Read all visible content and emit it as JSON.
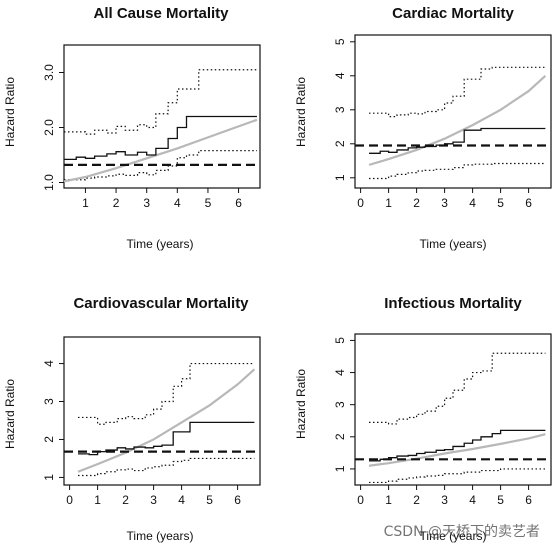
{
  "colors": {
    "axis": "#111111",
    "hr_line": "#111111",
    "ci_line": "#111111",
    "fitted_curve": "#b8b8b8",
    "reference_line": "#111111",
    "background": "#ffffff"
  },
  "watermark": "CSDN @天桥下的卖艺者",
  "chart_data": [
    {
      "type": "line",
      "title": "All Cause Mortality",
      "xlabel": "Time (years)",
      "ylabel": "Hazard Ratio",
      "xlim": [
        0.3,
        6.7
      ],
      "ylim": [
        0.9,
        3.5
      ],
      "xticks": [
        1,
        2,
        3,
        4,
        5,
        6
      ],
      "yticks": [
        1.0,
        2.0,
        3.0
      ],
      "ytick_labels": [
        "1.0",
        "2.0",
        "3.0"
      ],
      "grid": false,
      "series": [
        {
          "role": "estimate",
          "step": true,
          "x": [
            0.3,
            0.7,
            1.0,
            1.3,
            1.7,
            2.0,
            2.3,
            2.7,
            3.0,
            3.3,
            3.7,
            4.0,
            4.3,
            4.7,
            5.0,
            5.3,
            6.6
          ],
          "y": [
            1.42,
            1.46,
            1.44,
            1.48,
            1.52,
            1.56,
            1.5,
            1.55,
            1.5,
            1.62,
            1.8,
            2.0,
            2.2,
            2.2,
            2.2,
            2.2,
            2.2
          ]
        },
        {
          "role": "ci_upper",
          "step": true,
          "dotted": true,
          "x": [
            0.3,
            1.0,
            1.3,
            1.7,
            2.0,
            2.3,
            2.7,
            3.0,
            3.3,
            3.7,
            4.0,
            4.3,
            4.7,
            5.0,
            6.6
          ],
          "y": [
            1.92,
            1.88,
            1.95,
            1.9,
            2.02,
            1.95,
            2.05,
            2.0,
            2.25,
            2.45,
            2.7,
            2.7,
            3.05,
            3.05,
            3.05
          ]
        },
        {
          "role": "ci_lower",
          "step": true,
          "dotted": true,
          "x": [
            0.3,
            1.0,
            1.3,
            1.7,
            2.0,
            2.3,
            2.7,
            3.0,
            3.3,
            3.7,
            4.0,
            4.3,
            4.7,
            5.0,
            6.6
          ],
          "y": [
            1.05,
            1.08,
            1.1,
            1.12,
            1.15,
            1.13,
            1.18,
            1.14,
            1.22,
            1.3,
            1.45,
            1.5,
            1.58,
            1.58,
            1.58
          ]
        },
        {
          "role": "fitted_curve",
          "x": [
            0.3,
            1.0,
            2.0,
            3.0,
            4.0,
            5.0,
            6.0,
            6.6
          ],
          "y": [
            1.02,
            1.1,
            1.26,
            1.44,
            1.62,
            1.82,
            2.02,
            2.14
          ]
        },
        {
          "role": "reference",
          "dashed": true,
          "x": [
            0.3,
            6.7
          ],
          "y": [
            1.32,
            1.32
          ]
        }
      ]
    },
    {
      "type": "line",
      "title": "Cardiac Mortality",
      "xlabel": "Time (years)",
      "ylabel": "Hazard Ratio",
      "xlim": [
        -0.2,
        6.8
      ],
      "ylim": [
        0.7,
        5.2
      ],
      "xticks": [
        0,
        1,
        2,
        3,
        4,
        5,
        6
      ],
      "yticks": [
        1,
        2,
        3,
        4,
        5
      ],
      "ytick_labels": [
        "1",
        "2",
        "3",
        "4",
        "5"
      ],
      "grid": false,
      "series": [
        {
          "role": "estimate",
          "step": true,
          "x": [
            0.3,
            0.7,
            1.0,
            1.3,
            1.7,
            2.0,
            2.3,
            2.7,
            3.0,
            3.3,
            3.7,
            4.0,
            4.3,
            4.7,
            5.0,
            6.6
          ],
          "y": [
            1.72,
            1.78,
            1.75,
            1.82,
            1.88,
            1.9,
            1.92,
            1.96,
            2.0,
            2.05,
            2.4,
            2.4,
            2.45,
            2.45,
            2.45,
            2.45
          ]
        },
        {
          "role": "ci_upper",
          "step": true,
          "dotted": true,
          "x": [
            0.3,
            1.0,
            1.3,
            1.7,
            2.0,
            2.3,
            2.7,
            3.0,
            3.3,
            3.7,
            4.0,
            4.3,
            4.7,
            5.0,
            6.6
          ],
          "y": [
            2.9,
            2.8,
            2.85,
            2.9,
            2.88,
            2.95,
            3.0,
            3.2,
            3.4,
            3.9,
            3.9,
            4.2,
            4.25,
            4.25,
            4.25
          ]
        },
        {
          "role": "ci_lower",
          "step": true,
          "dotted": true,
          "x": [
            0.3,
            1.0,
            1.3,
            1.7,
            2.0,
            2.3,
            2.7,
            3.0,
            3.3,
            3.7,
            4.0,
            4.3,
            4.7,
            5.0,
            6.6
          ],
          "y": [
            0.98,
            1.05,
            1.1,
            1.15,
            1.2,
            1.22,
            1.25,
            1.25,
            1.3,
            1.38,
            1.4,
            1.4,
            1.42,
            1.42,
            1.42
          ]
        },
        {
          "role": "fitted_curve",
          "x": [
            0.3,
            1.0,
            2.0,
            3.0,
            4.0,
            5.0,
            6.0,
            6.6
          ],
          "y": [
            1.38,
            1.55,
            1.82,
            2.15,
            2.55,
            3.0,
            3.55,
            4.0
          ]
        },
        {
          "role": "reference",
          "dashed": true,
          "x": [
            -0.2,
            6.8
          ],
          "y": [
            1.95,
            1.95
          ]
        }
      ]
    },
    {
      "type": "line",
      "title": "Cardiovascular Mortality",
      "xlabel": "Time (years)",
      "ylabel": "Hazard Ratio",
      "xlim": [
        -0.2,
        6.8
      ],
      "ylim": [
        0.8,
        4.7
      ],
      "xticks": [
        0,
        1,
        2,
        3,
        4,
        5,
        6
      ],
      "yticks": [
        1,
        2,
        3,
        4
      ],
      "ytick_labels": [
        "1",
        "2",
        "3",
        "4"
      ],
      "grid": false,
      "series": [
        {
          "role": "estimate",
          "step": true,
          "x": [
            0.3,
            0.7,
            1.0,
            1.3,
            1.7,
            2.0,
            2.3,
            2.7,
            3.0,
            3.3,
            3.7,
            4.0,
            4.3,
            4.7,
            5.0,
            6.6
          ],
          "y": [
            1.62,
            1.6,
            1.68,
            1.72,
            1.78,
            1.75,
            1.8,
            1.78,
            1.82,
            1.85,
            2.2,
            2.2,
            2.45,
            2.45,
            2.45,
            2.45
          ]
        },
        {
          "role": "ci_upper",
          "step": true,
          "dotted": true,
          "x": [
            0.3,
            1.0,
            1.3,
            1.7,
            2.0,
            2.3,
            2.7,
            3.0,
            3.3,
            3.7,
            4.0,
            4.3,
            4.7,
            5.0,
            6.6
          ],
          "y": [
            2.58,
            2.4,
            2.45,
            2.55,
            2.6,
            2.55,
            2.65,
            2.8,
            3.0,
            3.4,
            3.6,
            4.0,
            4.0,
            4.0,
            4.0
          ]
        },
        {
          "role": "ci_lower",
          "step": true,
          "dotted": true,
          "x": [
            0.3,
            1.0,
            1.3,
            1.7,
            2.0,
            2.3,
            2.7,
            3.0,
            3.3,
            3.7,
            4.0,
            4.3,
            4.7,
            5.0,
            6.6
          ],
          "y": [
            1.05,
            1.1,
            1.15,
            1.2,
            1.22,
            1.18,
            1.25,
            1.28,
            1.32,
            1.42,
            1.45,
            1.5,
            1.5,
            1.5,
            1.5
          ]
        },
        {
          "role": "fitted_curve",
          "x": [
            0.3,
            1.0,
            2.0,
            3.0,
            4.0,
            5.0,
            6.0,
            6.6
          ],
          "y": [
            1.15,
            1.35,
            1.65,
            2.0,
            2.45,
            2.9,
            3.45,
            3.85
          ]
        },
        {
          "role": "reference",
          "dashed": true,
          "x": [
            -0.2,
            6.8
          ],
          "y": [
            1.68,
            1.68
          ]
        }
      ]
    },
    {
      "type": "line",
      "title": "Infectious Mortality",
      "xlabel": "Time (years)",
      "ylabel": "Hazard Ratio",
      "xlim": [
        -0.2,
        6.8
      ],
      "ylim": [
        0.5,
        5.2
      ],
      "xticks": [
        0,
        1,
        2,
        3,
        4,
        5,
        6
      ],
      "yticks": [
        1,
        2,
        3,
        4,
        5
      ],
      "ytick_labels": [
        "1",
        "2",
        "3",
        "4",
        "5"
      ],
      "grid": false,
      "series": [
        {
          "role": "estimate",
          "step": true,
          "x": [
            0.3,
            0.7,
            1.0,
            1.3,
            1.7,
            2.0,
            2.3,
            2.7,
            3.0,
            3.3,
            3.7,
            4.0,
            4.3,
            4.7,
            5.0,
            6.6
          ],
          "y": [
            1.25,
            1.3,
            1.35,
            1.4,
            1.42,
            1.48,
            1.52,
            1.58,
            1.6,
            1.7,
            1.8,
            1.9,
            2.0,
            2.1,
            2.2,
            2.2
          ]
        },
        {
          "role": "ci_upper",
          "step": true,
          "dotted": true,
          "x": [
            0.3,
            1.0,
            1.3,
            1.7,
            2.0,
            2.3,
            2.7,
            3.0,
            3.3,
            3.7,
            4.0,
            4.3,
            4.7,
            5.0,
            6.6
          ],
          "y": [
            2.45,
            2.4,
            2.55,
            2.6,
            2.7,
            2.8,
            2.95,
            3.2,
            3.45,
            3.8,
            4.0,
            4.05,
            4.6,
            4.6,
            4.6
          ]
        },
        {
          "role": "ci_lower",
          "step": true,
          "dotted": true,
          "x": [
            0.3,
            1.0,
            1.3,
            1.7,
            2.0,
            2.3,
            2.7,
            3.0,
            3.3,
            3.7,
            4.0,
            4.3,
            4.7,
            5.0,
            6.6
          ],
          "y": [
            0.58,
            0.62,
            0.68,
            0.72,
            0.75,
            0.78,
            0.8,
            0.85,
            0.85,
            0.9,
            0.9,
            0.95,
            0.95,
            1.0,
            1.0
          ]
        },
        {
          "role": "fitted_curve",
          "x": [
            0.3,
            1.0,
            2.0,
            3.0,
            4.0,
            5.0,
            6.0,
            6.6
          ],
          "y": [
            1.1,
            1.18,
            1.32,
            1.48,
            1.62,
            1.78,
            1.95,
            2.08
          ]
        },
        {
          "role": "reference",
          "dashed": true,
          "x": [
            -0.2,
            6.8
          ],
          "y": [
            1.3,
            1.3
          ]
        }
      ]
    }
  ]
}
